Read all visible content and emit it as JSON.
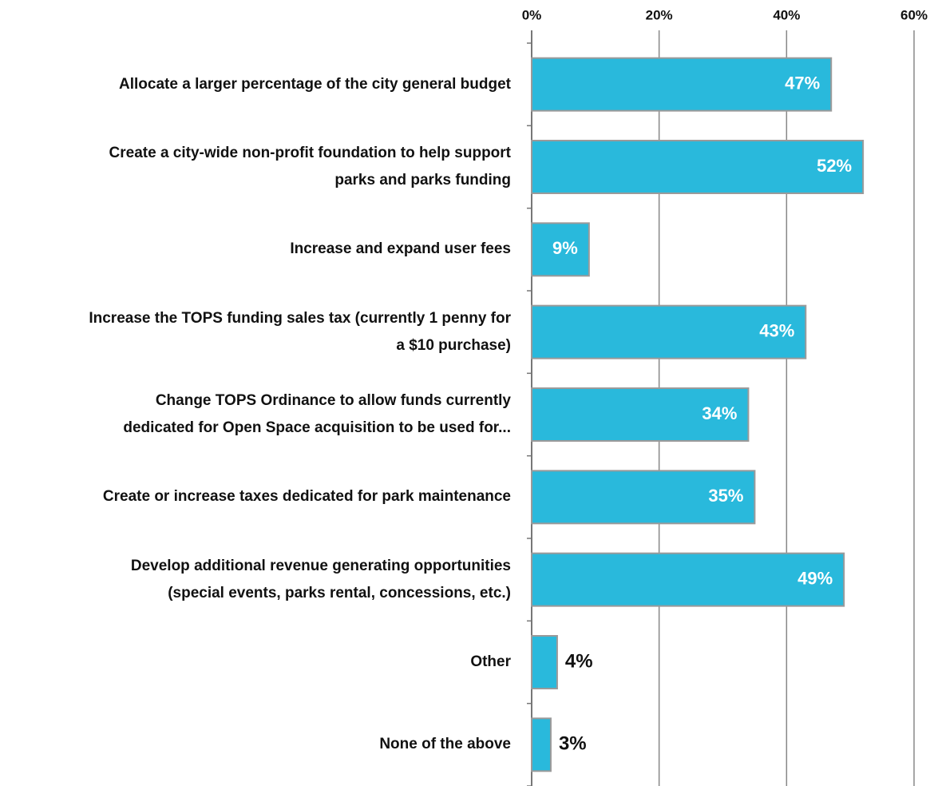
{
  "chart_data": {
    "type": "bar",
    "orientation": "horizontal",
    "categories": [
      "Allocate a larger percentage of the city general budget",
      "Create a city-wide non-profit foundation to help support\nparks and parks funding",
      "Increase and expand user fees",
      "Increase the TOPS funding sales tax (currently 1 penny for\na $10 purchase)",
      "Change TOPS Ordinance to allow funds currently\ndedicated for Open Space acquisition to be used for...",
      "Create or increase taxes dedicated for park maintenance",
      "Develop additional revenue generating opportunities\n(special events, parks rental, concessions, etc.)",
      "Other",
      "None of the above"
    ],
    "values": [
      47,
      52,
      9,
      43,
      34,
      35,
      49,
      4,
      3
    ],
    "value_labels": [
      "47%",
      "52%",
      "9%",
      "43%",
      "34%",
      "35%",
      "49%",
      "4%",
      "3%"
    ],
    "color": "#29b9dc",
    "xlim": [
      0,
      60
    ],
    "xticks": [
      {
        "value": 0,
        "label": "0%"
      },
      {
        "value": 20,
        "label": "20%"
      },
      {
        "value": 40,
        "label": "40%"
      },
      {
        "value": 60,
        "label": "60%"
      }
    ],
    "grid": true
  }
}
